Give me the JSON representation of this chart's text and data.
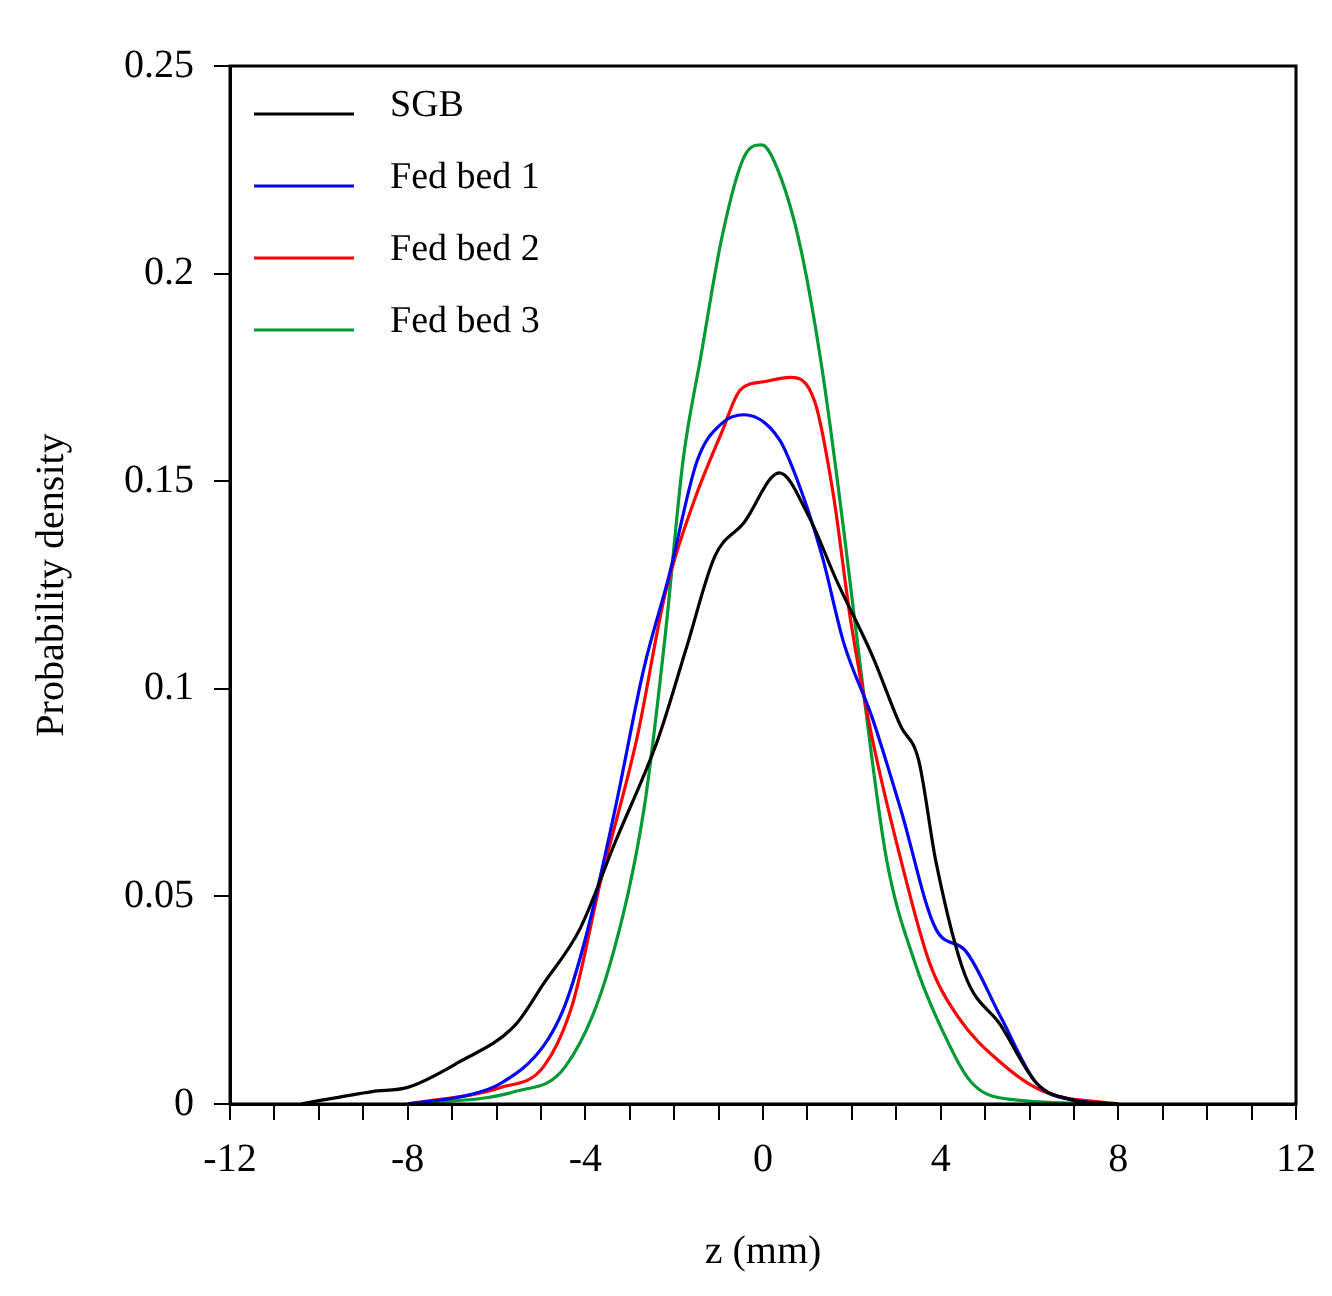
{
  "chart_data": {
    "type": "line",
    "xlabel": "z (mm)",
    "ylabel": "Probability density",
    "xlim": [
      -12,
      12
    ],
    "ylim": [
      0,
      0.25
    ],
    "xticks": [
      -12,
      {
        "value": -11,
        "label": null
      },
      {
        "value": -10,
        "label": null
      },
      {
        "value": -9,
        "label": null
      },
      -8,
      {
        "value": -7,
        "label": null
      },
      {
        "value": -6,
        "label": null
      },
      {
        "value": -5,
        "label": null
      },
      -4,
      {
        "value": -3,
        "label": null
      },
      {
        "value": -2,
        "label": null
      },
      {
        "value": -1,
        "label": null
      },
      0,
      {
        "value": 1,
        "label": null
      },
      {
        "value": 2,
        "label": null
      },
      {
        "value": 3,
        "label": null
      },
      4,
      {
        "value": 5,
        "label": null
      },
      {
        "value": 6,
        "label": null
      },
      {
        "value": 7,
        "label": null
      },
      8,
      {
        "value": 9,
        "label": null
      },
      {
        "value": 10,
        "label": null
      },
      {
        "value": 11,
        "label": null
      },
      12
    ],
    "yticks": [
      0,
      0.05,
      0.1,
      0.15,
      0.2,
      0.25
    ],
    "grid": false,
    "legend": "top left",
    "marker": "none",
    "line_style": "solid",
    "series": [
      {
        "name": "SGB",
        "color": "#000000",
        "x": [
          -10.4,
          -8.8,
          -8,
          -6.86,
          -5.58,
          -4.94,
          -4.13,
          -3.33,
          -2.36,
          -1.72,
          -1.08,
          -0.43,
          0.37,
          1.01,
          1.66,
          2.46,
          3.1,
          3.5,
          3.9,
          4.55,
          5.35,
          6.16,
          6.96,
          8
        ],
        "values": [
          0,
          0.003,
          0.004,
          0.01,
          0.019,
          0.029,
          0.042,
          0.063,
          0.088,
          0.11,
          0.132,
          0.14,
          0.152,
          0.142,
          0.126,
          0.108,
          0.091,
          0.083,
          0.058,
          0.031,
          0.019,
          0.005,
          0.001,
          0
        ]
      },
      {
        "name": "Fed bed 1",
        "color": "#0000ff",
        "x": [
          -8,
          -6.7,
          -5.9,
          -4.94,
          -4.45,
          -3.97,
          -3.33,
          -2.68,
          -2.12,
          -1.48,
          -0.92,
          -0.43,
          0.37,
          0.85,
          1.33,
          1.82,
          2.46,
          3.1,
          3.9,
          4.55,
          5.35,
          6.16,
          6.96,
          8
        ],
        "values": [
          0,
          0.002,
          0.005,
          0.014,
          0.024,
          0.041,
          0.071,
          0.105,
          0.127,
          0.155,
          0.164,
          0.166,
          0.16,
          0.148,
          0.132,
          0.111,
          0.093,
          0.071,
          0.042,
          0.037,
          0.021,
          0.005,
          0.001,
          0
        ]
      },
      {
        "name": "Fed bed 2",
        "color": "#ff0000",
        "x": [
          -8,
          -5.9,
          -4.94,
          -4.29,
          -3.65,
          -2.84,
          -2.2,
          -1.56,
          -0.92,
          -0.51,
          0.05,
          0.61,
          1.17,
          1.58,
          1.98,
          2.46,
          3.1,
          3.75,
          4.39,
          5.35,
          6.32,
          8
        ],
        "values": [
          0,
          0.004,
          0.009,
          0.024,
          0.054,
          0.088,
          0.123,
          0.145,
          0.162,
          0.172,
          0.174,
          0.175,
          0.169,
          0.147,
          0.116,
          0.088,
          0.059,
          0.034,
          0.021,
          0.01,
          0.003,
          0
        ]
      },
      {
        "name": "Fed bed 3",
        "color": "#009933",
        "x": [
          -8,
          -5.58,
          -4.45,
          -3.49,
          -2.68,
          -2.2,
          -1.8,
          -1.4,
          -0.92,
          -0.43,
          -0.03,
          0.37,
          0.85,
          1.33,
          1.82,
          2.3,
          2.78,
          3.42,
          4.07,
          4.71,
          5.68,
          8
        ],
        "values": [
          0,
          0.003,
          0.009,
          0.032,
          0.071,
          0.113,
          0.155,
          0.18,
          0.209,
          0.228,
          0.231,
          0.224,
          0.206,
          0.177,
          0.138,
          0.096,
          0.059,
          0.034,
          0.017,
          0.005,
          0.001,
          0
        ]
      }
    ]
  }
}
